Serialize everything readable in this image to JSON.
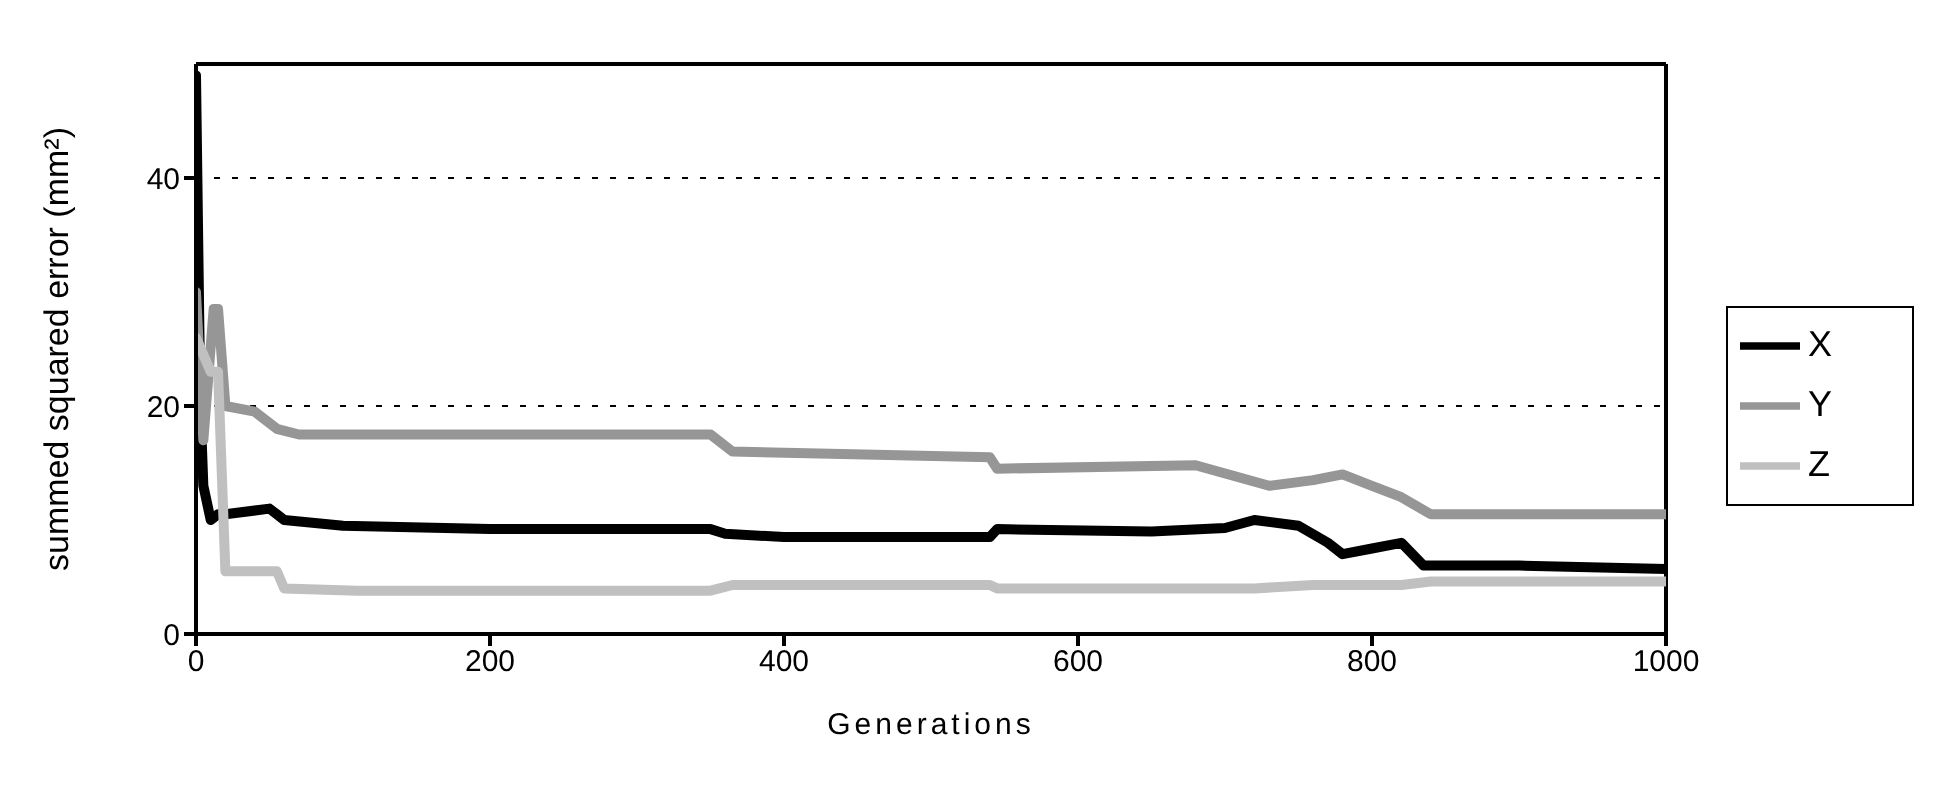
{
  "chart_data": {
    "type": "line",
    "xlabel": "Generations",
    "ylabel": "summed squared error (mm²)",
    "xlim": [
      0,
      1000
    ],
    "xticks": [
      0,
      200,
      400,
      600,
      800,
      1000
    ],
    "ylim": [
      0,
      50
    ],
    "yticks": [
      0,
      20,
      40
    ],
    "grid": "y",
    "legend": "right",
    "marker": "none",
    "line_style": "solid",
    "series": [
      {
        "name": "X",
        "color": "#000000",
        "x": [
          0,
          3,
          5,
          10,
          15,
          20,
          50,
          55,
          60,
          100,
          200,
          350,
          360,
          400,
          540,
          545,
          650,
          700,
          720,
          750,
          770,
          780,
          800,
          820,
          835,
          900,
          1000
        ],
        "values": [
          49,
          20,
          13,
          10,
          10.5,
          10.5,
          11,
          10.5,
          10,
          9.5,
          9.2,
          9.2,
          8.8,
          8.5,
          8.5,
          9.2,
          9,
          9.3,
          10,
          9.5,
          8,
          7,
          7.5,
          8,
          6,
          6,
          5.7
        ]
      },
      {
        "name": "Y",
        "color": "#969696",
        "x": [
          0,
          5,
          12,
          15,
          20,
          40,
          55,
          70,
          350,
          365,
          540,
          545,
          680,
          730,
          760,
          780,
          800,
          820,
          840,
          1000
        ],
        "values": [
          30,
          17,
          28.5,
          28.5,
          20,
          19.5,
          18,
          17.5,
          17.5,
          16,
          15.5,
          14.5,
          14.8,
          13,
          13.5,
          14,
          13,
          12,
          10.5,
          10.5
        ]
      },
      {
        "name": "Z",
        "color": "#c0c0c0",
        "x": [
          0,
          10,
          15,
          20,
          55,
          60,
          110,
          350,
          365,
          540,
          545,
          720,
          760,
          820,
          840,
          1000
        ],
        "values": [
          26,
          23,
          23,
          5.5,
          5.5,
          4,
          3.8,
          3.8,
          4.3,
          4.3,
          4,
          4,
          4.3,
          4.3,
          4.6,
          4.6
        ]
      }
    ]
  }
}
